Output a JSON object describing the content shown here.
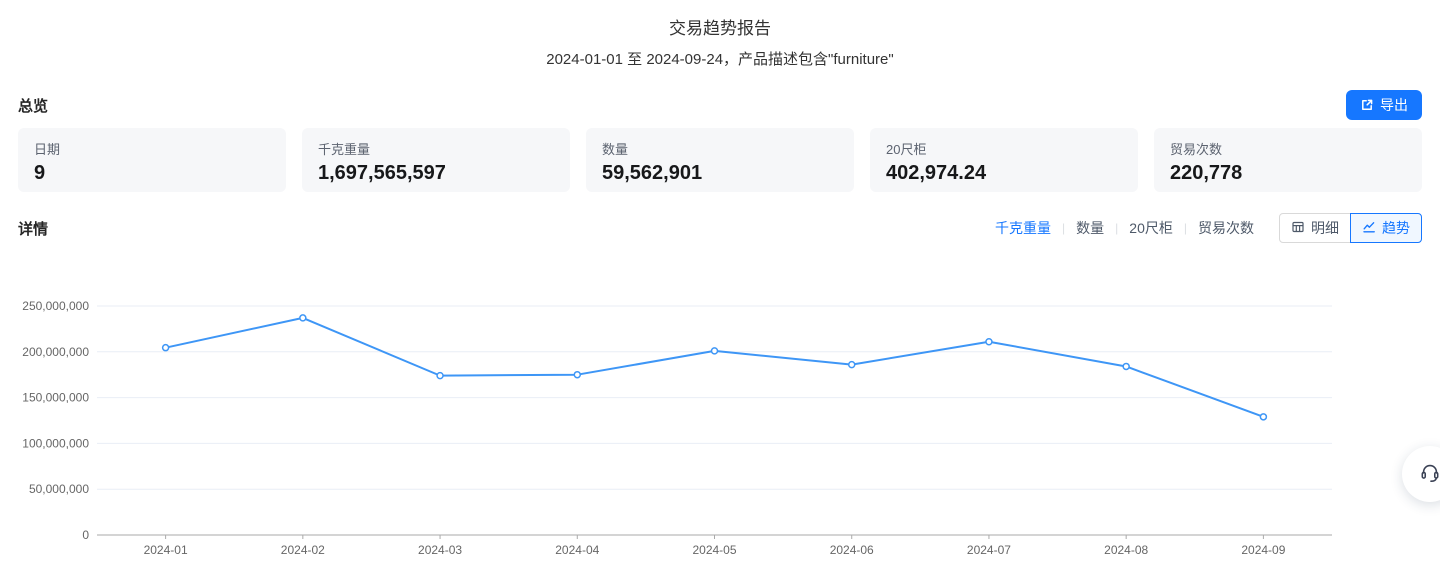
{
  "page": {
    "title": "交易趋势报告",
    "subtitle": "2024-01-01 至 2024-09-24，产品描述包含\"furniture\""
  },
  "overview": {
    "label": "总览",
    "export_label": "导出",
    "cards": [
      {
        "label": "日期",
        "value": "9"
      },
      {
        "label": "千克重量",
        "value": "1,697,565,597"
      },
      {
        "label": "数量",
        "value": "59,562,901"
      },
      {
        "label": "20尺柜",
        "value": "402,974.24"
      },
      {
        "label": "贸易次数",
        "value": "220,778"
      }
    ]
  },
  "details": {
    "label": "详情",
    "metric_tabs": [
      {
        "label": "千克重量",
        "active": true
      },
      {
        "label": "数量",
        "active": false
      },
      {
        "label": "20尺柜",
        "active": false
      },
      {
        "label": "贸易次数",
        "active": false
      }
    ],
    "view_toggle": [
      {
        "label": "明细",
        "icon": "table-icon",
        "active": false
      },
      {
        "label": "趋势",
        "icon": "trend-icon",
        "active": true
      }
    ]
  },
  "colors": {
    "accent": "#1677ff",
    "card_bg": "#f6f7f9"
  },
  "chart_data": {
    "type": "line",
    "categories": [
      "2024-01",
      "2024-02",
      "2024-03",
      "2024-04",
      "2024-05",
      "2024-06",
      "2024-07",
      "2024-08",
      "2024-09"
    ],
    "series": [
      {
        "name": "千克重量",
        "values": [
          204500000,
          237000000,
          174000000,
          175000000,
          201000000,
          186000000,
          211000000,
          184000000,
          129000000
        ]
      }
    ],
    "ylim": [
      0,
      250000000
    ],
    "yticks": [
      0,
      50000000,
      100000000,
      150000000,
      200000000,
      250000000
    ],
    "grid": true,
    "legend": "none",
    "colors": {
      "line": "#3e96f6",
      "point_fill": "#ffffff",
      "grid": "#e9eef6",
      "axis": "#aaaaaa",
      "axis_label": "#666666"
    }
  }
}
